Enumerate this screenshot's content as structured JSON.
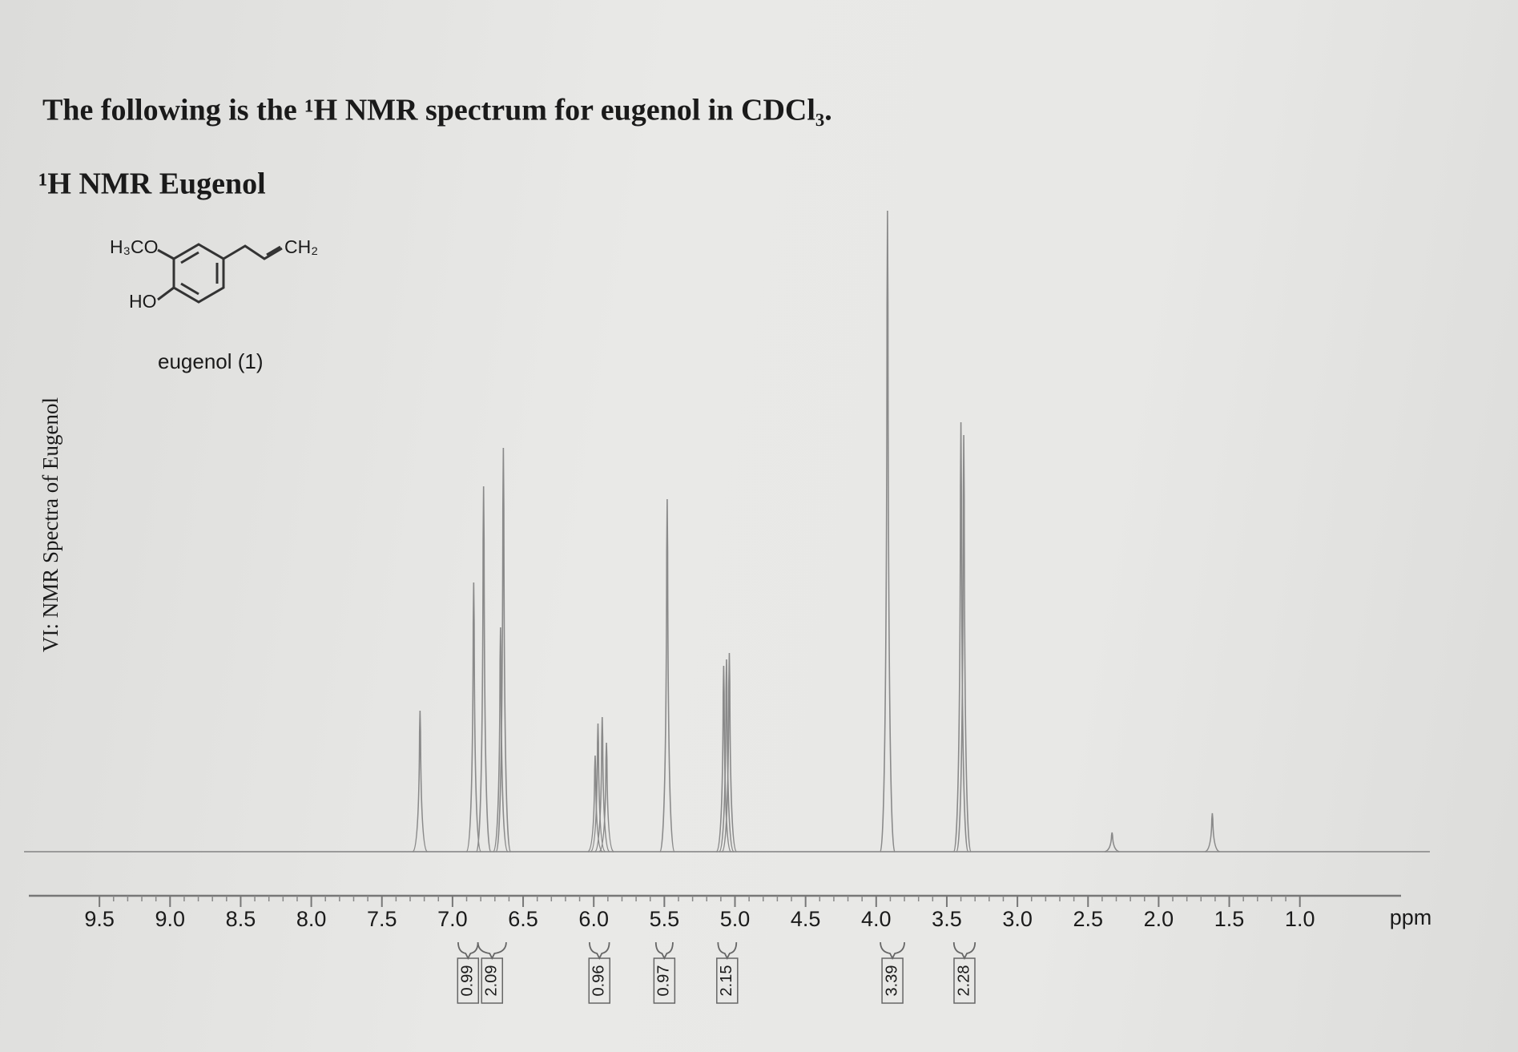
{
  "chart_data": {
    "type": "spectrum",
    "title": "The following is the ¹H NMR spectrum for eugenol in CDCl₃.",
    "subtitle": "¹H NMR Eugenol",
    "side_label": "VI: NMR Spectra of Eugenol",
    "structure": {
      "labels": [
        "H₃CO",
        "CH₂",
        "HO"
      ],
      "caption": "eugenol (1)"
    },
    "x_label": "ppm",
    "x": [
      7.23,
      6.85,
      6.78,
      6.66,
      6.64,
      5.99,
      5.97,
      5.94,
      5.91,
      5.48,
      5.08,
      5.06,
      5.04,
      3.92,
      3.4,
      3.38,
      2.33,
      1.62
    ],
    "values": [
      22,
      42,
      57,
      35,
      63,
      15,
      20,
      21,
      17,
      55,
      29,
      30,
      31,
      100,
      67,
      65,
      3,
      6
    ],
    "color": "#8a8a8a",
    "xlim": [
      10.0,
      0.0
    ],
    "xticks": [
      9.5,
      {
        "value": 9,
        "label": "9.0"
      },
      8.5,
      {
        "value": 8,
        "label": "8.0"
      },
      7.5,
      {
        "value": 7,
        "label": "7.0"
      },
      6.5,
      {
        "value": 6,
        "label": "6.0"
      },
      5.5,
      {
        "value": 5,
        "label": "5.0"
      },
      4.5,
      {
        "value": 4,
        "label": "4.0"
      },
      3.5,
      {
        "value": 3,
        "label": "3.0"
      },
      2.5,
      {
        "value": 2,
        "label": "2.0"
      },
      1.5,
      {
        "value": 1,
        "label": "1.0"
      }
    ],
    "integrals": [
      {
        "from": 6.96,
        "to": 6.82,
        "value": 0.99
      },
      {
        "from": 6.82,
        "to": 6.62,
        "value": 2.09
      },
      {
        "from": 6.03,
        "to": 5.89,
        "value": 0.96
      },
      {
        "from": 5.56,
        "to": 5.44,
        "value": 0.97
      },
      {
        "from": 5.12,
        "to": 4.99,
        "value": 2.15
      },
      {
        "from": 3.97,
        "to": 3.8,
        "value": 3.39
      },
      {
        "from": 3.45,
        "to": 3.3,
        "value": 2.28
      }
    ]
  }
}
